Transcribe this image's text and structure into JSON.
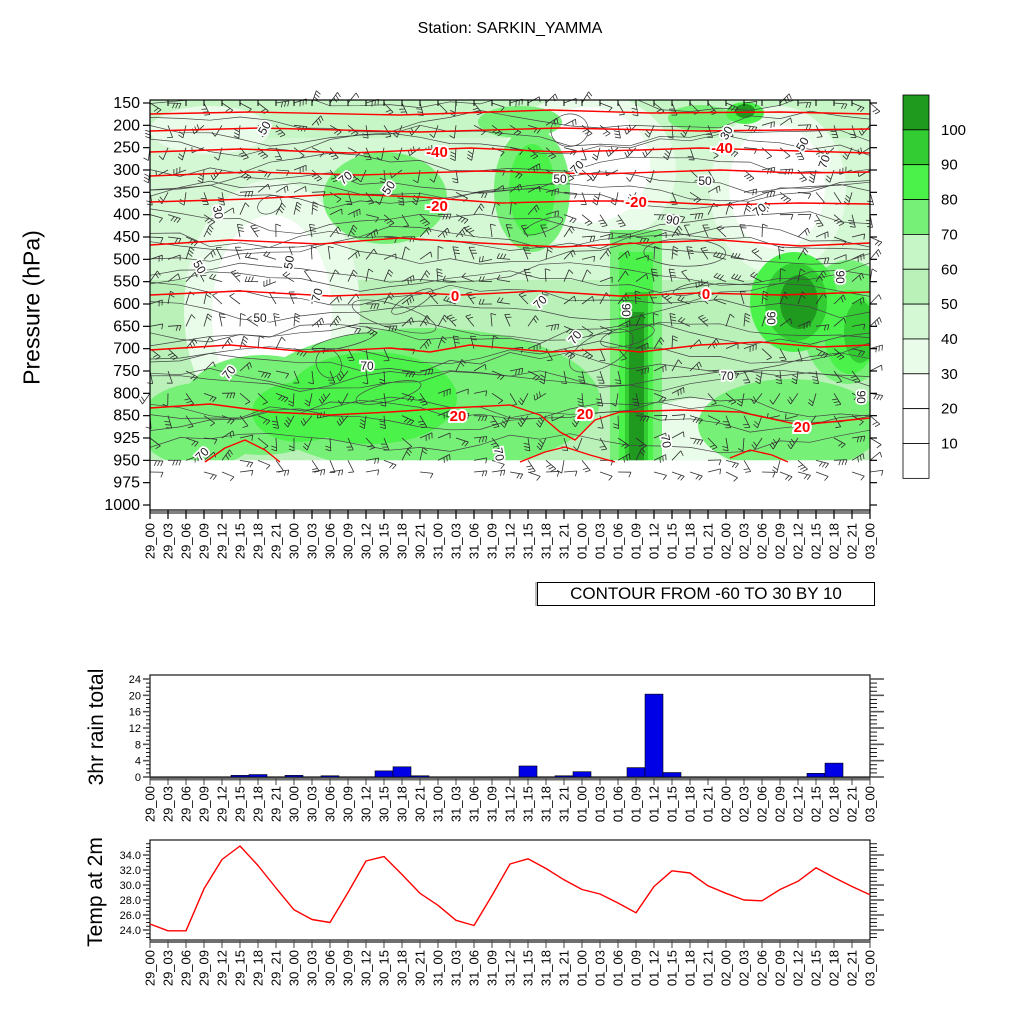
{
  "chart_data": {
    "title": "Station: SARKIN_YAMMA",
    "time_labels": [
      "29_00",
      "29_03",
      "29_06",
      "29_09",
      "29_12",
      "29_15",
      "29_18",
      "29_21",
      "30_00",
      "30_03",
      "30_06",
      "30_09",
      "30_12",
      "30_15",
      "30_18",
      "30_21",
      "31_00",
      "31_03",
      "31_06",
      "31_09",
      "31_12",
      "31_15",
      "31_18",
      "31_21",
      "01_00",
      "01_03",
      "01_06",
      "01_09",
      "01_12",
      "01_15",
      "01_18",
      "01_21",
      "02_00",
      "02_03",
      "02_06",
      "02_09",
      "02_12",
      "02_15",
      "02_18",
      "02_21",
      "03_00"
    ],
    "upper_air": {
      "type": "heatmap",
      "y_axis_title": "Pressure (hPa)",
      "pressure_levels": [
        "150",
        "200",
        "250",
        "300",
        "350",
        "400",
        "450",
        "500",
        "550",
        "600",
        "650",
        "700",
        "750",
        "800",
        "850",
        "925",
        "950",
        "975",
        "1000"
      ],
      "contour_note": "CONTOUR FROM -60 TO 30 BY 10",
      "shading_levels": [
        10,
        20,
        30,
        40,
        50,
        60,
        70,
        80,
        90,
        100
      ],
      "shade_palette": {
        "p100": "#1f9a1f",
        "p90": "#33cc33",
        "p80": "#4af24a",
        "p70": "#77f077",
        "p60": "#c6f6c6",
        "p50": "#b9f1b9",
        "p40": "#d4f7d4",
        "p30": "#e9fce9",
        "p0": "#ffffff"
      },
      "temp_contour_color": "#ff0000",
      "temp_contour_values": [
        -60,
        -50,
        -40,
        -30,
        -20,
        -10,
        0,
        10,
        20,
        30
      ],
      "temp_contour_lines": [
        {
          "value": -60,
          "pts": [
            [
              150,
              114
            ],
            [
              250,
              112
            ],
            [
              400,
              115
            ],
            [
              550,
              110
            ],
            [
              650,
              113
            ],
            [
              780,
              112
            ],
            [
              870,
              114
            ]
          ]
        },
        {
          "value": -50,
          "pts": [
            [
              150,
              131
            ],
            [
              260,
              128
            ],
            [
              420,
              132
            ],
            [
              560,
              128
            ],
            [
              700,
              131
            ],
            [
              870,
              129
            ]
          ]
        },
        {
          "value": -40,
          "pts": [
            [
              150,
              152
            ],
            [
              240,
              149
            ],
            [
              350,
              153
            ],
            [
              420,
              150
            ],
            [
              470,
              148
            ],
            [
              560,
              152
            ],
            [
              640,
              150
            ],
            [
              700,
              148
            ],
            [
              800,
              151
            ],
            [
              870,
              153
            ]
          ]
        },
        {
          "value": -30,
          "pts": [
            [
              150,
              176
            ],
            [
              250,
              172
            ],
            [
              360,
              175
            ],
            [
              480,
              171
            ],
            [
              600,
              174
            ],
            [
              720,
              170
            ],
            [
              800,
              173
            ],
            [
              870,
              172
            ]
          ]
        },
        {
          "value": -20,
          "pts": [
            [
              150,
              202
            ],
            [
              250,
              199
            ],
            [
              340,
              194
            ],
            [
              420,
              197
            ],
            [
              500,
              203
            ],
            [
              580,
              201
            ],
            [
              640,
              201
            ],
            [
              720,
              205
            ],
            [
              800,
              203
            ],
            [
              870,
              204
            ]
          ]
        },
        {
          "value": -10,
          "pts": [
            [
              150,
              245
            ],
            [
              230,
              240
            ],
            [
              320,
              244
            ],
            [
              400,
              238
            ],
            [
              480,
              243
            ],
            [
              560,
              247
            ],
            [
              640,
              243
            ],
            [
              720,
              240
            ],
            [
              800,
              246
            ],
            [
              870,
              243
            ]
          ]
        },
        {
          "value": 0,
          "pts": [
            [
              150,
              295
            ],
            [
              240,
              291
            ],
            [
              330,
              296
            ],
            [
              420,
              293
            ],
            [
              460,
              295
            ],
            [
              540,
              291
            ],
            [
              620,
              296
            ],
            [
              700,
              293
            ],
            [
              780,
              295
            ],
            [
              870,
              292
            ]
          ]
        },
        {
          "value": 10,
          "pts": [
            [
              150,
              350
            ],
            [
              230,
              345
            ],
            [
              310,
              352
            ],
            [
              390,
              348
            ],
            [
              430,
              352
            ],
            [
              470,
              345
            ],
            [
              550,
              352
            ],
            [
              610,
              349
            ],
            [
              640,
              352
            ],
            [
              700,
              345
            ],
            [
              760,
              342
            ],
            [
              820,
              347
            ],
            [
              870,
              345
            ]
          ]
        },
        {
          "value": 20,
          "pts": [
            [
              150,
              408
            ],
            [
              210,
              404
            ],
            [
              270,
              412
            ],
            [
              330,
              415
            ],
            [
              390,
              412
            ],
            [
              450,
              408
            ],
            [
              510,
              405
            ],
            [
              540,
              415
            ],
            [
              560,
              432
            ],
            [
              575,
              440
            ],
            [
              595,
              420
            ],
            [
              620,
              412
            ],
            [
              680,
              410
            ],
            [
              740,
              412
            ],
            [
              800,
              425
            ],
            [
              870,
              418
            ]
          ]
        },
        {
          "value": 30,
          "pts": [
            [
              205,
              462
            ],
            [
              225,
              448
            ],
            [
              245,
              440
            ],
            [
              265,
              450
            ],
            [
              280,
              462
            ]
          ]
        },
        {
          "value": 30,
          "pts": [
            [
              520,
              462
            ],
            [
              545,
              452
            ],
            [
              565,
              447
            ],
            [
              590,
              455
            ],
            [
              615,
              462
            ]
          ]
        },
        {
          "value": 30,
          "pts": [
            [
              730,
              458
            ],
            [
              750,
              450
            ],
            [
              772,
              455
            ],
            [
              788,
              462
            ]
          ]
        }
      ],
      "temp_contour_labels": [
        {
          "value": "-40",
          "x": 437,
          "y": 152
        },
        {
          "value": "-40",
          "x": 722,
          "y": 148
        },
        {
          "value": "-20",
          "x": 437,
          "y": 206
        },
        {
          "value": "-20",
          "x": 636,
          "y": 202
        },
        {
          "value": "0",
          "x": 455,
          "y": 296
        },
        {
          "value": "0",
          "x": 706,
          "y": 294
        },
        {
          "value": "20",
          "x": 458,
          "y": 416
        },
        {
          "value": "20",
          "x": 585,
          "y": 414
        },
        {
          "value": "20",
          "x": 802,
          "y": 427
        }
      ],
      "rh_contour_labels": [
        {
          "v": "50",
          "x": 268,
          "y": 130,
          "r": -60
        },
        {
          "v": "70",
          "x": 348,
          "y": 181,
          "r": -40
        },
        {
          "v": "50",
          "x": 392,
          "y": 190,
          "r": -55
        },
        {
          "v": "30",
          "x": 214,
          "y": 213,
          "r": 80
        },
        {
          "v": "50",
          "x": 196,
          "y": 269,
          "r": 60
        },
        {
          "v": "50",
          "x": 293,
          "y": 263,
          "r": -80
        },
        {
          "v": "70",
          "x": 321,
          "y": 296,
          "r": -75
        },
        {
          "v": "50",
          "x": 560,
          "y": 183,
          "r": 0
        },
        {
          "v": "70",
          "x": 580,
          "y": 170,
          "r": -45
        },
        {
          "v": "30",
          "x": 730,
          "y": 135,
          "r": -60
        },
        {
          "v": "50",
          "x": 806,
          "y": 146,
          "r": -60
        },
        {
          "v": "70",
          "x": 828,
          "y": 163,
          "r": -70
        },
        {
          "v": "90",
          "x": 672,
          "y": 224,
          "r": 10
        },
        {
          "v": "70",
          "x": 762,
          "y": 213,
          "r": -40
        },
        {
          "v": "50",
          "x": 705,
          "y": 185,
          "r": 0
        },
        {
          "v": "90",
          "x": 622,
          "y": 310,
          "r": 90
        },
        {
          "v": "90",
          "x": 767,
          "y": 318,
          "r": 90
        },
        {
          "v": "70",
          "x": 543,
          "y": 305,
          "r": -45
        },
        {
          "v": "70",
          "x": 578,
          "y": 340,
          "r": -50
        },
        {
          "v": "50",
          "x": 260,
          "y": 322,
          "r": 0
        },
        {
          "v": "70",
          "x": 232,
          "y": 375,
          "r": -50
        },
        {
          "v": "70",
          "x": 367,
          "y": 370,
          "r": 0
        },
        {
          "v": "70",
          "x": 205,
          "y": 457,
          "r": -45
        },
        {
          "v": "70",
          "x": 662,
          "y": 442,
          "r": 80
        },
        {
          "v": "70",
          "x": 727,
          "y": 380,
          "r": 0
        },
        {
          "v": "90",
          "x": 836,
          "y": 277,
          "r": 90
        },
        {
          "v": "90",
          "x": 857,
          "y": 397,
          "r": 90
        },
        {
          "v": "70",
          "x": 495,
          "y": 455,
          "r": 80
        }
      ]
    },
    "colorbar": {
      "labels": [
        "100",
        "90",
        "80",
        "70",
        "60",
        "50",
        "40",
        "30",
        "20",
        "10"
      ],
      "colors_top_to_bottom": [
        "#1f9a1f",
        "#33cc33",
        "#4af24a",
        "#77f077",
        "#c6f6c6",
        "#b9f1b9",
        "#d4f7d4",
        "#e9fce9",
        "#ffffff",
        "#ffffff",
        "#ffffff"
      ]
    },
    "rain": {
      "type": "bar",
      "y_axis_title": "3hr rain total",
      "y_ticks": [
        "0",
        "4",
        "8",
        "12",
        "16",
        "20",
        "24"
      ],
      "ylim": [
        0,
        25
      ],
      "bar_color": "#0000e6",
      "values": [
        0,
        0,
        0,
        0,
        0,
        0.4,
        0.6,
        0,
        0.4,
        0,
        0.3,
        0,
        0,
        1.5,
        2.5,
        0.3,
        0,
        0,
        0,
        0,
        0,
        2.7,
        0,
        0.3,
        1.3,
        0,
        0,
        2.3,
        20.3,
        1.1,
        0,
        0,
        0,
        0,
        0,
        0,
        0,
        0.9,
        3.4,
        0,
        0
      ]
    },
    "temp": {
      "type": "line",
      "y_axis_title": "Temp at 2m",
      "y_ticks": [
        "24.0",
        "26.0",
        "28.0",
        "30.0",
        "32.0",
        "34.0"
      ],
      "ylim": [
        22.7,
        36.0
      ],
      "line_color": "#ff0000",
      "values": [
        24.8,
        23.9,
        23.9,
        29.5,
        33.4,
        35.2,
        32.6,
        29.6,
        26.7,
        25.4,
        25.0,
        29.0,
        33.2,
        33.8,
        31.4,
        28.9,
        27.3,
        25.3,
        24.6,
        28.6,
        32.8,
        33.5,
        32.2,
        30.7,
        29.4,
        28.8,
        27.6,
        26.3,
        29.8,
        31.9,
        31.6,
        29.9,
        28.9,
        28.0,
        27.9,
        29.4,
        30.5,
        32.3,
        31.0,
        29.8,
        28.7
      ]
    }
  }
}
